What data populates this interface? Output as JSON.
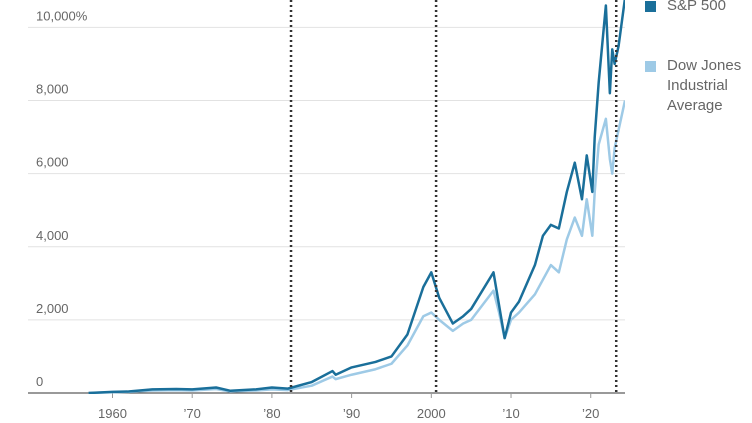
{
  "chart_data": {
    "type": "line",
    "x": [
      1957,
      1960,
      1962,
      1965,
      1968,
      1970,
      1973,
      1974.8,
      1978,
      1980,
      1982,
      1985,
      1987.6,
      1988,
      1990,
      1993,
      1995,
      1997,
      1999,
      2000,
      2001,
      2002.7,
      2004,
      2005,
      2007.8,
      2008.5,
      2009.2,
      2010,
      2011,
      2013,
      2014,
      2015,
      2016,
      2017,
      2018,
      2018.9,
      2019.5,
      2020.2,
      2020.5,
      2021,
      2021.9,
      2022.4,
      2022.7,
      2023,
      2023.5,
      2024.3
    ],
    "series": [
      {
        "name": "S&P 500",
        "color": "#1a6f9a",
        "values": [
          0,
          30,
          40,
          100,
          110,
          100,
          150,
          60,
          100,
          150,
          120,
          300,
          600,
          500,
          700,
          850,
          1000,
          1600,
          2900,
          3300,
          2600,
          1900,
          2100,
          2300,
          3300,
          2400,
          1500,
          2200,
          2500,
          3500,
          4300,
          4600,
          4500,
          5500,
          6300,
          5300,
          6500,
          5500,
          7000,
          8500,
          10600,
          8200,
          9400,
          9000,
          9500,
          10800
        ]
      },
      {
        "name": "Dow Jones Industrial Average",
        "color": "#9ecae6",
        "values": [
          0,
          20,
          30,
          70,
          80,
          70,
          110,
          40,
          70,
          100,
          80,
          200,
          450,
          380,
          500,
          650,
          800,
          1300,
          2100,
          2200,
          2000,
          1700,
          1900,
          2000,
          2800,
          2200,
          1500,
          2000,
          2200,
          2700,
          3100,
          3500,
          3300,
          4200,
          4800,
          4300,
          5300,
          4300,
          5500,
          6800,
          7500,
          6400,
          6000,
          6700,
          7200,
          8000
        ]
      }
    ],
    "xlim": [
      1949.4,
      2024.3
    ],
    "xticks": [
      {
        "value": 1960,
        "label": "1960"
      },
      {
        "value": 1970,
        "label": "’70"
      },
      {
        "value": 1980,
        "label": "’80"
      },
      {
        "value": 1990,
        "label": "’90"
      },
      {
        "value": 2000,
        "label": "2000"
      },
      {
        "value": 2010,
        "label": "’10"
      },
      {
        "value": 2020,
        "label": "’20"
      }
    ],
    "ylim": [
      0,
      10750
    ],
    "yticks": [
      0,
      {
        "value": 2000,
        "label": "2,000"
      },
      {
        "value": 4000,
        "label": "4,000"
      },
      {
        "value": 6000,
        "label": "6,000"
      },
      {
        "value": 8000,
        "label": "8,000"
      },
      {
        "value": 10000,
        "label": "10,000%"
      }
    ],
    "vlines": [
      1982.4,
      2000.6,
      2023.2
    ],
    "grid": true
  }
}
